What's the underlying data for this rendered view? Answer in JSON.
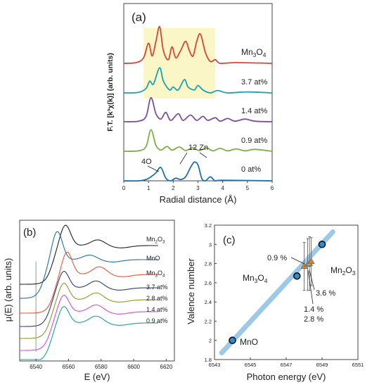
{
  "chart_data": [
    {
      "type": "line",
      "panel": "(a)",
      "xlabel": "Radial distance (Å)",
      "ylabel": "F.T. [k³χ(k)] (arb. units)",
      "xlim": [
        0,
        6
      ],
      "x_ticks": [
        "0",
        "1",
        "2",
        "3",
        "4",
        "5",
        "6"
      ],
      "highlight_range": [
        0.8,
        3.7
      ],
      "series": [
        {
          "name": "Mn3O4",
          "label_main": "Mn",
          "label_sub1": "3",
          "label_mid": "O",
          "label_sub2": "4",
          "color": "#d9443a",
          "points": [
            [
              0,
              0
            ],
            [
              0.5,
              0.02
            ],
            [
              0.8,
              0.15
            ],
            [
              1.0,
              0.55
            ],
            [
              1.15,
              0.2
            ],
            [
              1.3,
              0.6
            ],
            [
              1.45,
              1.0
            ],
            [
              1.6,
              0.35
            ],
            [
              1.8,
              0.1
            ],
            [
              1.95,
              0.45
            ],
            [
              2.1,
              0.15
            ],
            [
              2.3,
              0.35
            ],
            [
              2.5,
              0.6
            ],
            [
              2.65,
              0.35
            ],
            [
              2.8,
              0.2
            ],
            [
              2.95,
              0.6
            ],
            [
              3.1,
              0.8
            ],
            [
              3.3,
              0.3
            ],
            [
              3.5,
              0.05
            ],
            [
              3.7,
              0.1
            ],
            [
              3.9,
              0.0
            ],
            [
              4.5,
              0.02
            ],
            [
              6,
              0
            ]
          ]
        },
        {
          "name": "3.7 at%",
          "color": "#1aa3b3",
          "points": [
            [
              0,
              0
            ],
            [
              0.6,
              0.02
            ],
            [
              0.9,
              0.15
            ],
            [
              1.05,
              0.4
            ],
            [
              1.2,
              0.3
            ],
            [
              1.45,
              0.85
            ],
            [
              1.6,
              0.4
            ],
            [
              1.85,
              0.1
            ],
            [
              2.0,
              0.2
            ],
            [
              2.2,
              0.1
            ],
            [
              2.45,
              0.45
            ],
            [
              2.6,
              0.2
            ],
            [
              2.85,
              0.1
            ],
            [
              3.0,
              0.25
            ],
            [
              3.2,
              0.1
            ],
            [
              3.5,
              0.0
            ],
            [
              3.8,
              0.08
            ],
            [
              4.2,
              0.0
            ],
            [
              5,
              0.03
            ],
            [
              6,
              0
            ]
          ]
        },
        {
          "name": "1.4 at%",
          "color": "#7a4fa0",
          "points": [
            [
              0,
              0
            ],
            [
              0.6,
              0.02
            ],
            [
              0.9,
              0.2
            ],
            [
              1.1,
              0.9
            ],
            [
              1.3,
              0.3
            ],
            [
              1.5,
              0.1
            ],
            [
              1.7,
              0.35
            ],
            [
              1.9,
              0.05
            ],
            [
              2.2,
              0.3
            ],
            [
              2.4,
              0.05
            ],
            [
              2.7,
              0.25
            ],
            [
              2.95,
              0.05
            ],
            [
              3.2,
              0.2
            ],
            [
              3.4,
              0.05
            ],
            [
              3.7,
              0.15
            ],
            [
              3.9,
              0.02
            ],
            [
              4.2,
              0.12
            ],
            [
              4.5,
              0.02
            ],
            [
              4.9,
              0.1
            ],
            [
              5.3,
              0.02
            ],
            [
              6,
              0
            ]
          ]
        },
        {
          "name": "0.9 at%",
          "color": "#7db043",
          "points": [
            [
              0,
              0
            ],
            [
              0.6,
              0.02
            ],
            [
              0.9,
              0.2
            ],
            [
              1.1,
              0.9
            ],
            [
              1.3,
              0.25
            ],
            [
              1.5,
              0.05
            ],
            [
              1.75,
              0.2
            ],
            [
              1.95,
              0.05
            ],
            [
              2.25,
              0.18
            ],
            [
              2.5,
              0.03
            ],
            [
              2.8,
              0.15
            ],
            [
              3.05,
              0.03
            ],
            [
              3.35,
              0.14
            ],
            [
              3.6,
              0.02
            ],
            [
              3.9,
              0.12
            ],
            [
              4.2,
              0.02
            ],
            [
              4.55,
              0.1
            ],
            [
              4.9,
              0.02
            ],
            [
              5.3,
              0.08
            ],
            [
              6,
              0
            ]
          ]
        },
        {
          "name": "0 at%",
          "color": "#1f6fad",
          "points": [
            [
              0,
              0
            ],
            [
              0.6,
              0.0
            ],
            [
              0.9,
              0.05
            ],
            [
              1.1,
              0.15
            ],
            [
              1.3,
              0.3
            ],
            [
              1.5,
              0.5
            ],
            [
              1.7,
              0.1
            ],
            [
              1.9,
              0.0
            ],
            [
              2.1,
              0.1
            ],
            [
              2.3,
              0.05
            ],
            [
              2.5,
              0.15
            ],
            [
              2.7,
              0.5
            ],
            [
              2.85,
              0.7
            ],
            [
              3.0,
              0.6
            ],
            [
              3.15,
              0.1
            ],
            [
              3.3,
              0.0
            ],
            [
              3.5,
              0.15
            ],
            [
              3.7,
              0.0
            ],
            [
              4.0,
              0.02
            ],
            [
              6,
              0
            ]
          ]
        }
      ],
      "annotations": [
        {
          "text": "4O"
        },
        {
          "text": "12 Zn"
        }
      ]
    },
    {
      "type": "line",
      "panel": "(b)",
      "xlabel": "E (eV)",
      "ylabel": "μ(E)  (arb. units)",
      "xlim": [
        6530,
        6625
      ],
      "x_ticks": [
        "6540",
        "6560",
        "6580",
        "6600",
        "6620"
      ],
      "series": [
        {
          "name": "Mn2O3",
          "label_main": "Mn",
          "label_sub1": "2",
          "label_mid": "O",
          "label_sub2": "3",
          "color": "#222222"
        },
        {
          "name": "MnO",
          "color": "#1f6fad"
        },
        {
          "name": "Mn3O4",
          "label_main": "Mn",
          "label_sub1": "3",
          "label_mid": "O",
          "label_sub2": "4",
          "color": "#e8553a"
        },
        {
          "name": "3.7 at%",
          "color": "#2a3c8f"
        },
        {
          "name": "2.8 at%",
          "color": "#8a9a2a"
        },
        {
          "name": "1.4 at%",
          "color": "#d94ad9"
        },
        {
          "name": "0.9 at%",
          "color": "#1aa38e"
        }
      ],
      "marker_line_x": 6540
    },
    {
      "type": "scatter",
      "panel": "(c)",
      "xlabel": "Photon energy (eV)",
      "ylabel": "Valence number",
      "xlim": [
        6543,
        6551
      ],
      "ylim": [
        1.8,
        3.2
      ],
      "x_ticks": [
        "6543",
        "6545",
        "6547",
        "6549",
        "6551"
      ],
      "y_ticks": [
        "1.8",
        "2",
        "2.2",
        "2.4",
        "2.6",
        "2.8",
        "3",
        "3.2"
      ],
      "fit_line": [
        [
          6543.4,
          1.87
        ],
        [
          6549.6,
          3.13
        ]
      ],
      "references": [
        {
          "name": "MnO",
          "x": 6544.0,
          "y": 2.0
        },
        {
          "name": "Mn3O4",
          "label_main": "Mn",
          "label_sub1": "3",
          "label_mid": "O",
          "label_sub2": "4",
          "x": 6547.6,
          "y": 2.67
        },
        {
          "name": "Mn2O3",
          "label_main": "Mn",
          "label_sub1": "2",
          "label_mid": "O",
          "label_sub2": "3",
          "x": 6549.0,
          "y": 3.0
        }
      ],
      "samples": [
        {
          "name": "0.9 %",
          "x": 6548.0,
          "y": 2.77,
          "err": 0.25,
          "color": "#e07b2c"
        },
        {
          "name": "1.4 %",
          "x": 6548.2,
          "y": 2.79,
          "err": 0.27,
          "color": "#8a8a8a"
        },
        {
          "name": "2.8 %",
          "x": 6548.3,
          "y": 2.8,
          "err": 0.28,
          "color": "#9bbb59"
        },
        {
          "name": "3.6 %",
          "x": 6548.4,
          "y": 2.82,
          "err": 0.25,
          "color": "#e07b2c"
        }
      ],
      "labels": {
        "l09": "0.9 %",
        "l36": "3.6 %",
        "l14": "1.4 %",
        "l28": "2.8 %"
      }
    }
  ]
}
